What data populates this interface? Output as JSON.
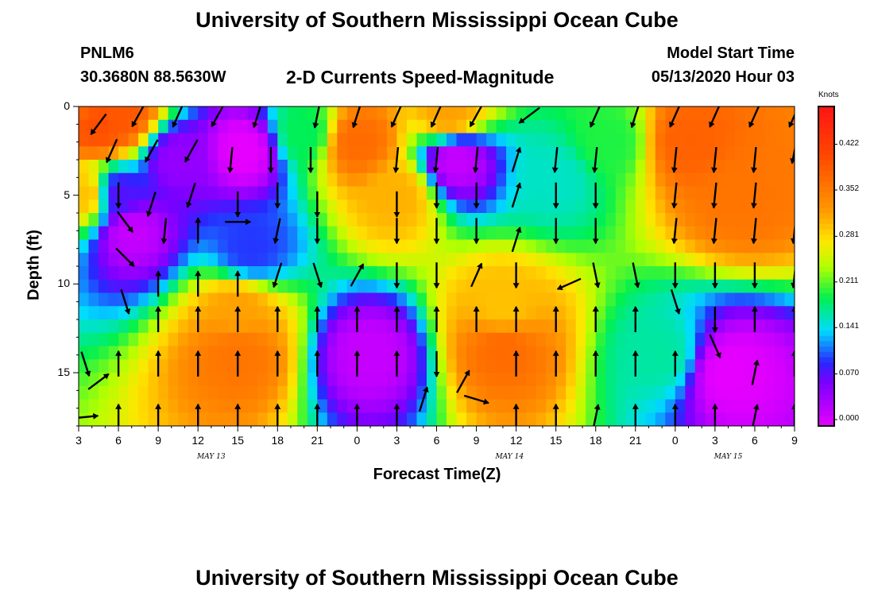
{
  "header": {
    "title_top": "University of Southern Mississippi Ocean Cube",
    "title_bottom": "University of Southern Mississippi Ocean Cube",
    "station_id": "PNLM6",
    "station_coords": "30.3680N 88.5630W",
    "plot_title": "2-D Currents Speed-Magnitude",
    "model_start_label": "Model Start Time",
    "model_start_value": "05/13/2020 Hour 03"
  },
  "chart_data": {
    "type": "heatmap",
    "xlabel": "Forecast Time(Z)",
    "ylabel": "Depth (ft)",
    "x_ticks": [
      "3",
      "6",
      "9",
      "12",
      "15",
      "18",
      "21",
      "0",
      "3",
      "6",
      "9",
      "12",
      "15",
      "18",
      "21",
      "0",
      "3",
      "6",
      "9"
    ],
    "x_range_hours": [
      0,
      54
    ],
    "date_labels": [
      {
        "label": "MAY 13",
        "hour": 10
      },
      {
        "label": "MAY 14",
        "hour": 32.5
      },
      {
        "label": "MAY 15",
        "hour": 49
      }
    ],
    "y_ticks": [
      0,
      5,
      10,
      15
    ],
    "ylim": [
      18,
      0
    ],
    "colorbar": {
      "title": "Knots",
      "ticks": [
        "0.000",
        "0.070",
        "0.141",
        "0.211",
        "0.281",
        "0.352",
        "0.422"
      ],
      "range": [
        0,
        0.48
      ]
    },
    "speed_features_knots": [
      {
        "t": 0,
        "d": 0,
        "v": 0.38
      },
      {
        "t": 1.5,
        "d": 1,
        "v": 0.4
      },
      {
        "t": 3,
        "d": 0.5,
        "v": 0.39
      },
      {
        "t": 0.5,
        "d": 5,
        "v": 0.3
      },
      {
        "t": 3,
        "d": 5,
        "v": 0.08
      },
      {
        "t": 4,
        "d": 7,
        "v": 0.02
      },
      {
        "t": 7.5,
        "d": 3,
        "v": 0.05
      },
      {
        "t": 12.5,
        "d": 2.5,
        "v": 0.0
      },
      {
        "t": 13,
        "d": 8,
        "v": 0.1
      },
      {
        "t": 12,
        "d": 14,
        "v": 0.36
      },
      {
        "t": 12,
        "d": 11.5,
        "v": 0.32
      },
      {
        "t": 17,
        "d": 1.5,
        "v": 0.19
      },
      {
        "t": 21,
        "d": 2,
        "v": 0.37
      },
      {
        "t": 24,
        "d": 5,
        "v": 0.31
      },
      {
        "t": 22,
        "d": 14,
        "v": 0.02
      },
      {
        "t": 28.5,
        "d": 3,
        "v": 0.02
      },
      {
        "t": 28,
        "d": 0.5,
        "v": 0.32
      },
      {
        "t": 32,
        "d": 13.5,
        "v": 0.37
      },
      {
        "t": 32,
        "d": 11.5,
        "v": 0.3
      },
      {
        "t": 36,
        "d": 4,
        "v": 0.16
      },
      {
        "t": 40,
        "d": 2,
        "v": 0.2
      },
      {
        "t": 46,
        "d": 2,
        "v": 0.38
      },
      {
        "t": 49,
        "d": 15,
        "v": 0.0
      },
      {
        "t": 50,
        "d": 5,
        "v": 0.36
      },
      {
        "t": 44,
        "d": 14,
        "v": 0.17
      }
    ],
    "vectors": [
      {
        "t": 1.5,
        "d": 1,
        "dx": -0.6,
        "dy": 0.8
      },
      {
        "t": 4.5,
        "d": 0.5,
        "dx": -0.5,
        "dy": 0.9
      },
      {
        "t": 7.5,
        "d": 0.5,
        "dx": -0.4,
        "dy": 0.9
      },
      {
        "t": 10.5,
        "d": 0.5,
        "dx": -0.5,
        "dy": 0.9
      },
      {
        "t": 13.5,
        "d": 0.5,
        "dx": -0.3,
        "dy": 0.95
      },
      {
        "t": 18,
        "d": 0.5,
        "dx": -0.2,
        "dy": 0.98
      },
      {
        "t": 21,
        "d": 0.5,
        "dx": -0.3,
        "dy": 0.95
      },
      {
        "t": 24,
        "d": 0.5,
        "dx": -0.4,
        "dy": 0.9
      },
      {
        "t": 27,
        "d": 0.5,
        "dx": -0.4,
        "dy": 0.9
      },
      {
        "t": 30,
        "d": 0.5,
        "dx": -0.5,
        "dy": 0.9
      },
      {
        "t": 34,
        "d": 0.5,
        "dx": -0.8,
        "dy": 0.6
      },
      {
        "t": 39,
        "d": 0.5,
        "dx": -0.4,
        "dy": 0.9
      },
      {
        "t": 42,
        "d": 0.5,
        "dx": -0.3,
        "dy": 0.95
      },
      {
        "t": 45,
        "d": 0.5,
        "dx": -0.4,
        "dy": 0.9
      },
      {
        "t": 48,
        "d": 0.5,
        "dx": -0.4,
        "dy": 0.9
      },
      {
        "t": 51,
        "d": 0.5,
        "dx": -0.4,
        "dy": 0.9
      },
      {
        "t": 54,
        "d": 0.5,
        "dx": -0.4,
        "dy": 0.9
      },
      {
        "t": 2.5,
        "d": 2.5,
        "dx": -0.4,
        "dy": 0.9
      },
      {
        "t": 5.5,
        "d": 2.5,
        "dx": -0.5,
        "dy": 0.9
      },
      {
        "t": 8.5,
        "d": 2.5,
        "dx": -0.5,
        "dy": 0.9
      },
      {
        "t": 11.5,
        "d": 3,
        "dx": -0.1,
        "dy": 1
      },
      {
        "t": 14.5,
        "d": 3,
        "dx": 0,
        "dy": 1
      },
      {
        "t": 17.5,
        "d": 3,
        "dx": 0,
        "dy": 1
      },
      {
        "t": 24,
        "d": 3,
        "dx": -0.1,
        "dy": 1
      },
      {
        "t": 27,
        "d": 3,
        "dx": -0.1,
        "dy": 1
      },
      {
        "t": 30,
        "d": 3,
        "dx": -0.1,
        "dy": 1
      },
      {
        "t": 33,
        "d": 3,
        "dx": 0.3,
        "dy": -0.95
      },
      {
        "t": 36,
        "d": 3,
        "dx": -0.1,
        "dy": 1
      },
      {
        "t": 39,
        "d": 3,
        "dx": -0.1,
        "dy": 1
      },
      {
        "t": 45,
        "d": 3,
        "dx": -0.1,
        "dy": 1
      },
      {
        "t": 48,
        "d": 3,
        "dx": -0.1,
        "dy": 1
      },
      {
        "t": 51,
        "d": 3,
        "dx": -0.1,
        "dy": 1
      },
      {
        "t": 54,
        "d": 2.5,
        "dx": -0.2,
        "dy": 1
      },
      {
        "t": 3,
        "d": 5,
        "dx": 0,
        "dy": 1
      },
      {
        "t": 5.5,
        "d": 5.5,
        "dx": -0.3,
        "dy": 0.95
      },
      {
        "t": 8.5,
        "d": 5,
        "dx": -0.3,
        "dy": 0.95
      },
      {
        "t": 12,
        "d": 5.5,
        "dx": 0,
        "dy": 1
      },
      {
        "t": 15,
        "d": 5,
        "dx": 0,
        "dy": 1
      },
      {
        "t": 18,
        "d": 5.5,
        "dx": 0,
        "dy": 1
      },
      {
        "t": 24,
        "d": 5.5,
        "dx": 0,
        "dy": 1
      },
      {
        "t": 27,
        "d": 5,
        "dx": 0,
        "dy": 1
      },
      {
        "t": 30,
        "d": 5,
        "dx": 0,
        "dy": 1
      },
      {
        "t": 33,
        "d": 5,
        "dx": 0.3,
        "dy": -0.95
      },
      {
        "t": 36,
        "d": 5,
        "dx": 0,
        "dy": 1
      },
      {
        "t": 39,
        "d": 5,
        "dx": 0,
        "dy": 1
      },
      {
        "t": 45,
        "d": 5,
        "dx": -0.1,
        "dy": 1
      },
      {
        "t": 48,
        "d": 5,
        "dx": -0.1,
        "dy": 1
      },
      {
        "t": 51,
        "d": 5,
        "dx": -0.1,
        "dy": 1
      },
      {
        "t": 3.5,
        "d": 6.5,
        "dx": 0.6,
        "dy": 0.8
      },
      {
        "t": 6.5,
        "d": 7,
        "dx": -0.1,
        "dy": 1
      },
      {
        "t": 9,
        "d": 7,
        "dx": 0,
        "dy": -1
      },
      {
        "t": 12,
        "d": 6.5,
        "dx": 1,
        "dy": 0
      },
      {
        "t": 15,
        "d": 7,
        "dx": -0.2,
        "dy": 0.98
      },
      {
        "t": 18,
        "d": 7,
        "dx": 0,
        "dy": 1
      },
      {
        "t": 24,
        "d": 7,
        "dx": 0,
        "dy": 1
      },
      {
        "t": 27,
        "d": 7,
        "dx": 0,
        "dy": 1
      },
      {
        "t": 30,
        "d": 7,
        "dx": 0,
        "dy": 1
      },
      {
        "t": 33,
        "d": 7.5,
        "dx": 0.3,
        "dy": -0.95
      },
      {
        "t": 36,
        "d": 7,
        "dx": 0,
        "dy": 1
      },
      {
        "t": 39,
        "d": 7,
        "dx": 0,
        "dy": 1
      },
      {
        "t": 45,
        "d": 7,
        "dx": -0.1,
        "dy": 1
      },
      {
        "t": 48,
        "d": 7,
        "dx": -0.1,
        "dy": 1
      },
      {
        "t": 51,
        "d": 7,
        "dx": -0.1,
        "dy": 1
      },
      {
        "t": 54,
        "d": 7,
        "dx": -0.1,
        "dy": 1
      },
      {
        "t": 3.5,
        "d": 8.5,
        "dx": 0.7,
        "dy": 0.7
      },
      {
        "t": 6,
        "d": 10,
        "dx": 0,
        "dy": -1
      },
      {
        "t": 9,
        "d": 10,
        "dx": 0,
        "dy": -1
      },
      {
        "t": 12,
        "d": 10,
        "dx": 0,
        "dy": -1
      },
      {
        "t": 15,
        "d": 9.5,
        "dx": -0.3,
        "dy": 0.95
      },
      {
        "t": 18,
        "d": 9.5,
        "dx": 0.3,
        "dy": 0.95
      },
      {
        "t": 21,
        "d": 9.5,
        "dx": 0.5,
        "dy": -0.9
      },
      {
        "t": 24,
        "d": 9.5,
        "dx": 0,
        "dy": 1
      },
      {
        "t": 27,
        "d": 9.5,
        "dx": 0,
        "dy": 1
      },
      {
        "t": 30,
        "d": 9.5,
        "dx": 0.4,
        "dy": -0.9
      },
      {
        "t": 33,
        "d": 9.5,
        "dx": 0,
        "dy": 1
      },
      {
        "t": 37,
        "d": 10,
        "dx": -0.9,
        "dy": 0.4
      },
      {
        "t": 39,
        "d": 9.5,
        "dx": 0.2,
        "dy": 0.98
      },
      {
        "t": 42,
        "d": 9.5,
        "dx": 0.2,
        "dy": 0.98
      },
      {
        "t": 45,
        "d": 9.5,
        "dx": 0,
        "dy": 1
      },
      {
        "t": 48,
        "d": 9.5,
        "dx": 0,
        "dy": 1
      },
      {
        "t": 51,
        "d": 9.5,
        "dx": 0,
        "dy": 1
      },
      {
        "t": 54,
        "d": 9.5,
        "dx": -0.1,
        "dy": 1
      },
      {
        "t": 3.5,
        "d": 11,
        "dx": 0.3,
        "dy": 0.95
      },
      {
        "t": 6,
        "d": 12,
        "dx": 0,
        "dy": -1
      },
      {
        "t": 9,
        "d": 12,
        "dx": 0,
        "dy": -1
      },
      {
        "t": 12,
        "d": 12,
        "dx": 0,
        "dy": -1
      },
      {
        "t": 15,
        "d": 12,
        "dx": 0,
        "dy": -1
      },
      {
        "t": 18,
        "d": 12,
        "dx": 0,
        "dy": -1
      },
      {
        "t": 21,
        "d": 12,
        "dx": 0,
        "dy": -1
      },
      {
        "t": 24,
        "d": 12,
        "dx": 0,
        "dy": -1
      },
      {
        "t": 27,
        "d": 12,
        "dx": 0,
        "dy": -1
      },
      {
        "t": 30,
        "d": 12,
        "dx": 0,
        "dy": -1
      },
      {
        "t": 33,
        "d": 12,
        "dx": 0,
        "dy": -1
      },
      {
        "t": 36,
        "d": 12,
        "dx": 0,
        "dy": -1
      },
      {
        "t": 39,
        "d": 12,
        "dx": 0,
        "dy": -1
      },
      {
        "t": 42,
        "d": 12,
        "dx": 0,
        "dy": -1
      },
      {
        "t": 45,
        "d": 11,
        "dx": 0.3,
        "dy": 0.95
      },
      {
        "t": 48,
        "d": 12,
        "dx": 0,
        "dy": 1
      },
      {
        "t": 51,
        "d": 12,
        "dx": 0,
        "dy": -1
      },
      {
        "t": 54,
        "d": 12,
        "dx": 0,
        "dy": -1
      },
      {
        "t": 0.5,
        "d": 14.5,
        "dx": 0.3,
        "dy": 0.95
      },
      {
        "t": 3,
        "d": 14.5,
        "dx": 0,
        "dy": -1
      },
      {
        "t": 1.5,
        "d": 15.5,
        "dx": 0.8,
        "dy": -0.6
      },
      {
        "t": 6,
        "d": 14.5,
        "dx": 0,
        "dy": -1
      },
      {
        "t": 9,
        "d": 14.5,
        "dx": 0,
        "dy": -1
      },
      {
        "t": 12,
        "d": 14.5,
        "dx": 0,
        "dy": -1
      },
      {
        "t": 15,
        "d": 14.5,
        "dx": 0,
        "dy": -1
      },
      {
        "t": 18,
        "d": 14.5,
        "dx": 0,
        "dy": -1
      },
      {
        "t": 21,
        "d": 14.5,
        "dx": 0,
        "dy": -1
      },
      {
        "t": 24,
        "d": 14.5,
        "dx": 0,
        "dy": -1
      },
      {
        "t": 27,
        "d": 14.5,
        "dx": 0,
        "dy": 1
      },
      {
        "t": 29,
        "d": 15.5,
        "dx": 0.5,
        "dy": -0.9
      },
      {
        "t": 33,
        "d": 14.5,
        "dx": 0,
        "dy": -1
      },
      {
        "t": 36,
        "d": 14.5,
        "dx": 0,
        "dy": -1
      },
      {
        "t": 39,
        "d": 14.5,
        "dx": 0,
        "dy": -1
      },
      {
        "t": 42,
        "d": 14.5,
        "dx": 0,
        "dy": -1
      },
      {
        "t": 45,
        "d": 14.5,
        "dx": 0,
        "dy": -1
      },
      {
        "t": 48,
        "d": 13.5,
        "dx": 0.4,
        "dy": 0.9
      },
      {
        "t": 51,
        "d": 15,
        "dx": 0.2,
        "dy": -0.98
      },
      {
        "t": 54,
        "d": 14.5,
        "dx": 0,
        "dy": -1
      },
      {
        "t": 0.5,
        "d": 17.5,
        "dx": 1,
        "dy": -0.1
      },
      {
        "t": 3,
        "d": 17.5,
        "dx": 0,
        "dy": -1
      },
      {
        "t": 6,
        "d": 17.5,
        "dx": 0,
        "dy": -1
      },
      {
        "t": 9,
        "d": 17.5,
        "dx": 0,
        "dy": -1
      },
      {
        "t": 12,
        "d": 17.5,
        "dx": 0,
        "dy": -1
      },
      {
        "t": 15,
        "d": 17.5,
        "dx": 0,
        "dy": -1
      },
      {
        "t": 18,
        "d": 17.5,
        "dx": 0,
        "dy": -1
      },
      {
        "t": 21,
        "d": 17.5,
        "dx": 0,
        "dy": -1
      },
      {
        "t": 24,
        "d": 17.5,
        "dx": 0,
        "dy": -1
      },
      {
        "t": 26,
        "d": 16.5,
        "dx": 0.3,
        "dy": -0.95
      },
      {
        "t": 30,
        "d": 16.5,
        "dx": 1,
        "dy": 0.3
      },
      {
        "t": 33,
        "d": 17.5,
        "dx": 0,
        "dy": -1
      },
      {
        "t": 36,
        "d": 17.5,
        "dx": 0,
        "dy": -1
      },
      {
        "t": 39,
        "d": 17.5,
        "dx": 0.2,
        "dy": -0.98
      },
      {
        "t": 42,
        "d": 17.5,
        "dx": 0,
        "dy": -1
      },
      {
        "t": 45,
        "d": 17.5,
        "dx": 0,
        "dy": -1
      },
      {
        "t": 48,
        "d": 17.5,
        "dx": 0,
        "dy": -1
      },
      {
        "t": 51,
        "d": 17.5,
        "dx": 0.2,
        "dy": -0.98
      },
      {
        "t": 54,
        "d": 17.5,
        "dx": 0,
        "dy": -1
      }
    ]
  }
}
